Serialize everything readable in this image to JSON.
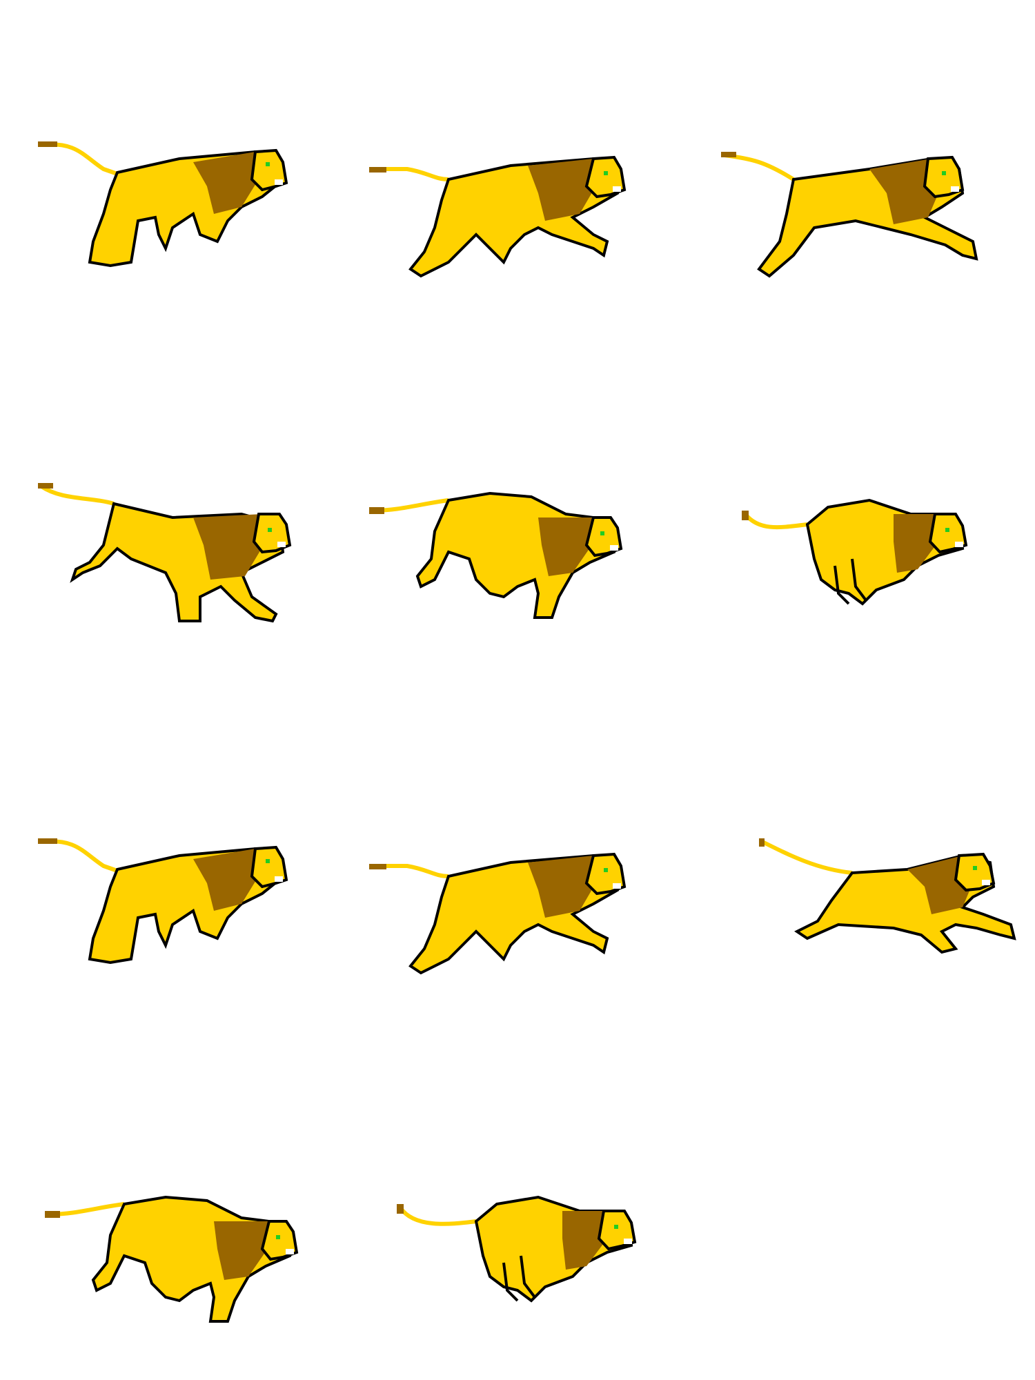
{
  "sprite_sheet": {
    "colors": {
      "body": "#FFD200",
      "mane": "#996600",
      "tail": "#FFD200",
      "tail_tuft": "#996600",
      "outline": "#000000",
      "eye": "#22CC22",
      "muzzle": "#FFFFFF",
      "background": "#FFFFFF"
    },
    "frames": [
      {
        "pose": "walk-1",
        "icon": "lion-walk-sprite"
      },
      {
        "pose": "walk-2",
        "icon": "lion-trot-sprite"
      },
      {
        "pose": "run-stretch",
        "icon": "lion-run-sprite"
      },
      {
        "pose": "gallop-extend",
        "icon": "lion-gallop-sprite"
      },
      {
        "pose": "gallop-gather",
        "icon": "lion-gallop-sprite"
      },
      {
        "pose": "gallop-bunch",
        "icon": "lion-leap-sprite"
      },
      {
        "pose": "walk-1",
        "icon": "lion-walk-sprite"
      },
      {
        "pose": "walk-2",
        "icon": "lion-trot-sprite"
      },
      {
        "pose": "run-flat",
        "icon": "lion-run-sprite"
      },
      {
        "pose": "gallop-gather",
        "icon": "lion-gallop-sprite"
      },
      {
        "pose": "gallop-bunch",
        "icon": "lion-leap-sprite"
      }
    ]
  }
}
